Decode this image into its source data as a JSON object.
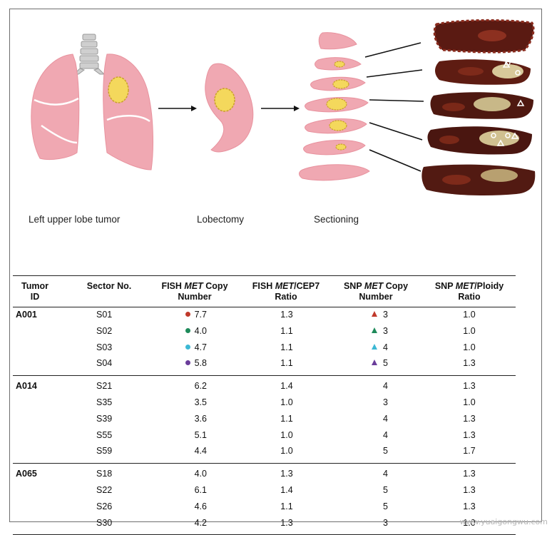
{
  "captions": {
    "left": "Left upper lobe tumor",
    "middle": "Lobectomy",
    "right": "Sectioning"
  },
  "headers": {
    "tumor_id": [
      "Tumor",
      "ID"
    ],
    "sector_no": "Sector No.",
    "fish_copy": [
      "FISH ",
      "MET",
      " Copy",
      "Number"
    ],
    "fish_ratio": [
      "FISH ",
      "MET",
      "/CEP7",
      "Ratio"
    ],
    "snp_copy": [
      "SNP ",
      "MET",
      " Copy",
      "Number"
    ],
    "snp_ratio": [
      "SNP ",
      "MET",
      "/Ploidy",
      "Ratio"
    ]
  },
  "groups": [
    {
      "tumor_id": "A001",
      "rows": [
        {
          "sector": "S01",
          "fish_copy": "7.7",
          "fish_ratio": "1.3",
          "snp_copy": "3",
          "snp_ratio": "1.0",
          "marker_color": "#c0392b"
        },
        {
          "sector": "S02",
          "fish_copy": "4.0",
          "fish_ratio": "1.1",
          "snp_copy": "3",
          "snp_ratio": "1.0",
          "marker_color": "#1e8a5a"
        },
        {
          "sector": "S03",
          "fish_copy": "4.7",
          "fish_ratio": "1.1",
          "snp_copy": "4",
          "snp_ratio": "1.0",
          "marker_color": "#3cb8d4"
        },
        {
          "sector": "S04",
          "fish_copy": "5.8",
          "fish_ratio": "1.1",
          "snp_copy": "5",
          "snp_ratio": "1.3",
          "marker_color": "#6a3d9a"
        }
      ]
    },
    {
      "tumor_id": "A014",
      "rows": [
        {
          "sector": "S21",
          "fish_copy": "6.2",
          "fish_ratio": "1.4",
          "snp_copy": "4",
          "snp_ratio": "1.3"
        },
        {
          "sector": "S35",
          "fish_copy": "3.5",
          "fish_ratio": "1.0",
          "snp_copy": "3",
          "snp_ratio": "1.0"
        },
        {
          "sector": "S39",
          "fish_copy": "3.6",
          "fish_ratio": "1.1",
          "snp_copy": "4",
          "snp_ratio": "1.3"
        },
        {
          "sector": "S55",
          "fish_copy": "5.1",
          "fish_ratio": "1.0",
          "snp_copy": "4",
          "snp_ratio": "1.3"
        },
        {
          "sector": "S59",
          "fish_copy": "4.4",
          "fish_ratio": "1.0",
          "snp_copy": "5",
          "snp_ratio": "1.7"
        }
      ]
    },
    {
      "tumor_id": "A065",
      "rows": [
        {
          "sector": "S18",
          "fish_copy": "4.0",
          "fish_ratio": "1.3",
          "snp_copy": "4",
          "snp_ratio": "1.3"
        },
        {
          "sector": "S22",
          "fish_copy": "6.1",
          "fish_ratio": "1.4",
          "snp_copy": "5",
          "snp_ratio": "1.3"
        },
        {
          "sector": "S26",
          "fish_copy": "4.6",
          "fish_ratio": "1.1",
          "snp_copy": "5",
          "snp_ratio": "1.3"
        },
        {
          "sector": "S30",
          "fish_copy": "4.2",
          "fish_ratio": "1.3",
          "snp_copy": "3",
          "snp_ratio": "1.0"
        }
      ]
    }
  ],
  "watermark": "www.yuaigongwu.com",
  "colors": {
    "lung_pink": "#f0a8b2",
    "tumor_yellow": "#f4d85c",
    "tissue_dark": "#5a1a12"
  }
}
